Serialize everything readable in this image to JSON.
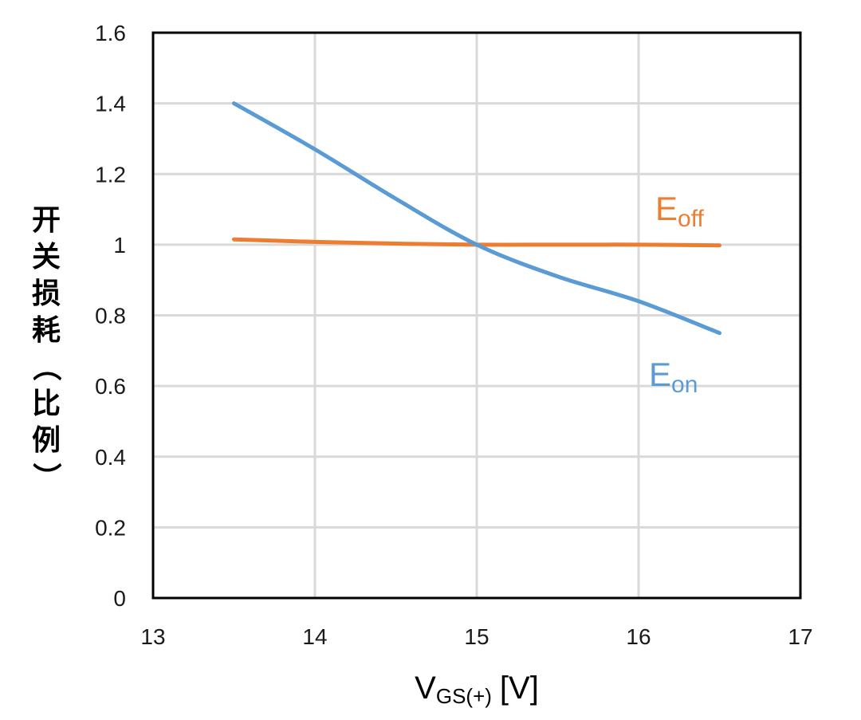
{
  "chart_data": {
    "type": "line",
    "title": "",
    "xlabel": {
      "main": "V",
      "sub": "GS(+)",
      "unit": "[V]"
    },
    "ylabel": "开关损耗（比例）",
    "xlim": [
      13,
      17
    ],
    "ylim": [
      0,
      1.6
    ],
    "x_ticks": [
      "13",
      "14",
      "15",
      "16",
      "17"
    ],
    "y_ticks": [
      "0",
      "0.2",
      "0.4",
      "0.6",
      "0.8",
      "1",
      "1.2",
      "1.4",
      "1.6"
    ],
    "grid": true,
    "series": [
      {
        "name": "Eon",
        "label_main": "E",
        "label_sub": "on",
        "color": "#5b9bd5",
        "x": [
          13.5,
          14.0,
          14.5,
          15.0,
          15.5,
          16.0,
          16.5
        ],
        "y": [
          1.4,
          1.27,
          1.13,
          1.0,
          0.91,
          0.84,
          0.75
        ]
      },
      {
        "name": "Eoff",
        "label_main": "E",
        "label_sub": "off",
        "color": "#ed7d31",
        "x": [
          13.5,
          14.0,
          14.5,
          15.0,
          15.5,
          16.0,
          16.5
        ],
        "y": [
          1.015,
          1.008,
          1.003,
          1.0,
          1.0,
          1.0,
          0.998
        ]
      }
    ]
  }
}
